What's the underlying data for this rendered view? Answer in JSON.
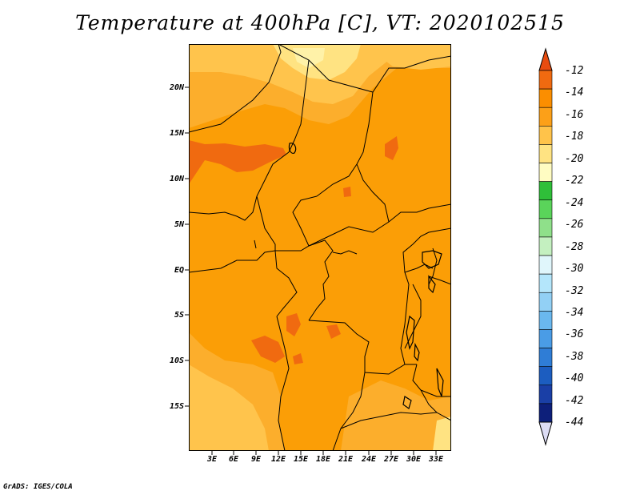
{
  "title": "Temperature at 400hPa [C], VT: 2020102515",
  "y_axis_labels": [
    "20N",
    "15N",
    "10N",
    "5N",
    "EQ",
    "5S",
    "10S",
    "15S"
  ],
  "x_axis_labels": [
    "3E",
    "6E",
    "9E",
    "12E",
    "15E",
    "18E",
    "21E",
    "24E",
    "27E",
    "30E",
    "33E"
  ],
  "colorbar": {
    "labels": [
      "-12",
      "-14",
      "-16",
      "-18",
      "-20",
      "-22",
      "-24",
      "-26",
      "-28",
      "-30",
      "-32",
      "-34",
      "-36",
      "-38",
      "-40",
      "-42",
      "-44"
    ],
    "colors": [
      "#f06a10",
      "#fb8e00",
      "#fca018",
      "#ffc34a",
      "#ffe382",
      "#fffcc2",
      "#2fbf39",
      "#5ad45a",
      "#8fe08a",
      "#c4f0c0",
      "#e0f6fb",
      "#b4e6fb",
      "#92d0f5",
      "#6ab8ef",
      "#4a9ce6",
      "#2f7dd6",
      "#1c5dc0",
      "#1a3fa6",
      "#0d1f7a"
    ],
    "under_color": "#dcdcf4",
    "over_color": "#e84c10"
  },
  "chart_data": {
    "type": "heatmap",
    "title": "Temperature at 400hPa [C], VT: 2020102515",
    "variable": "Temperature at 400hPa",
    "units": "C",
    "valid_time": "2020102515",
    "lon_range": [
      0,
      34.5
    ],
    "lat_range": [
      -20,
      24.5
    ],
    "lon_ticks": [
      3,
      6,
      9,
      12,
      15,
      18,
      21,
      24,
      27,
      30,
      33
    ],
    "lat_ticks": [
      20,
      15,
      10,
      5,
      0,
      -5,
      -10,
      -15
    ],
    "levels": [
      -44,
      -42,
      -40,
      -38,
      -36,
      -34,
      -32,
      -30,
      -28,
      -26,
      -24,
      -22,
      -20,
      -18,
      -16,
      -14,
      -12
    ],
    "dominant_range": [
      -16,
      -14
    ],
    "warm_pockets": "-14 to -12 over northern Nigeria (~10-14N, 0-13E) and scattered spots in Angola",
    "cool_areas": "-18 to -20 over southern Libya/northern Chad (~20-24N) and southern Angola/Namibia (~8-20S)"
  },
  "credit": "GrADS: IGES/COLA"
}
